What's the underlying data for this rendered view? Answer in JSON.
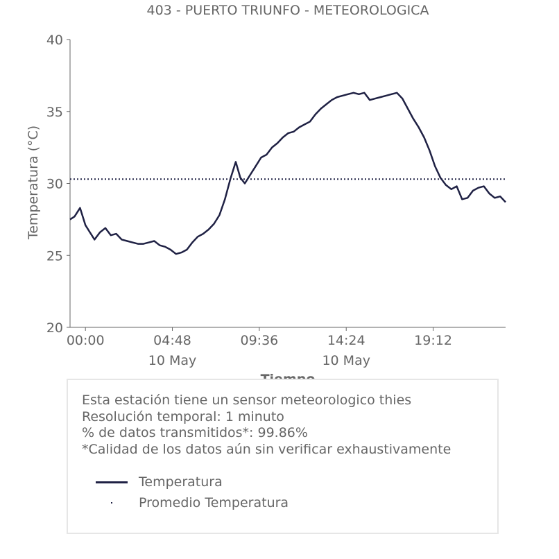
{
  "chart_data": {
    "type": "line",
    "title": "403 - PUERTO TRIUNFO - METEOROLOGICA",
    "xlabel": "Tiempo",
    "ylabel": "Temperatura (°C)",
    "ylim": [
      20,
      40
    ],
    "yticks": [
      20,
      25,
      30,
      35,
      40
    ],
    "xlim_hours": [
      -0.85,
      23.2
    ],
    "xticks": [
      {
        "hour": 0.0,
        "label": "00:00",
        "sublabel": ""
      },
      {
        "hour": 4.8,
        "label": "04:48",
        "sublabel": "10 May"
      },
      {
        "hour": 9.6,
        "label": "09:36",
        "sublabel": ""
      },
      {
        "hour": 14.4,
        "label": "14:24",
        "sublabel": "10 May"
      },
      {
        "hour": 19.2,
        "label": "19:12",
        "sublabel": ""
      }
    ],
    "grid": false,
    "series": [
      {
        "name": "Temperatura",
        "color": "#1f2144",
        "style": "solid",
        "x": [
          -0.85,
          -0.6,
          -0.3,
          0.0,
          0.2,
          0.5,
          0.8,
          1.1,
          1.4,
          1.7,
          2.0,
          2.3,
          2.6,
          2.9,
          3.2,
          3.5,
          3.8,
          4.1,
          4.4,
          4.7,
          5.0,
          5.3,
          5.6,
          5.9,
          6.2,
          6.5,
          6.8,
          7.1,
          7.4,
          7.7,
          8.0,
          8.3,
          8.55,
          8.8,
          9.1,
          9.4,
          9.7,
          10.0,
          10.3,
          10.6,
          10.9,
          11.2,
          11.5,
          11.8,
          12.1,
          12.4,
          12.7,
          13.0,
          13.3,
          13.6,
          13.9,
          14.2,
          14.5,
          14.8,
          15.1,
          15.4,
          15.7,
          16.0,
          16.3,
          16.6,
          16.9,
          17.2,
          17.5,
          17.8,
          18.1,
          18.4,
          18.7,
          19.0,
          19.3,
          19.6,
          19.9,
          20.2,
          20.5,
          20.8,
          21.1,
          21.4,
          21.7,
          22.0,
          22.3,
          22.6,
          22.9,
          23.2
        ],
        "y": [
          27.5,
          27.7,
          28.3,
          27.1,
          26.7,
          26.1,
          26.6,
          26.9,
          26.4,
          26.5,
          26.1,
          26.0,
          25.9,
          25.8,
          25.8,
          25.9,
          26.0,
          25.7,
          25.6,
          25.4,
          25.1,
          25.2,
          25.4,
          25.9,
          26.3,
          26.5,
          26.8,
          27.2,
          27.8,
          28.9,
          30.3,
          31.5,
          30.4,
          30.0,
          30.6,
          31.2,
          31.8,
          32.0,
          32.5,
          32.8,
          33.2,
          33.5,
          33.6,
          33.9,
          34.1,
          34.3,
          34.8,
          35.2,
          35.5,
          35.8,
          36.0,
          36.1,
          36.2,
          36.3,
          36.2,
          36.3,
          35.8,
          35.9,
          36.0,
          36.1,
          36.2,
          36.3,
          35.9,
          35.2,
          34.5,
          33.9,
          33.2,
          32.3,
          31.2,
          30.4,
          29.9,
          29.6,
          29.8,
          28.9,
          29.0,
          29.5,
          29.7,
          29.8,
          29.3,
          29.0,
          29.1,
          28.7
        ]
      },
      {
        "name": "Promedio Temperatura",
        "color": "#1f2144",
        "style": "dotted",
        "x": [
          -0.85,
          23.2
        ],
        "y": [
          30.3,
          30.3
        ]
      }
    ]
  },
  "info": {
    "line1": "Esta estación tiene un sensor meteorologico thies",
    "line2": "Resolución temporal: 1 minuto",
    "line3": "% de datos transmitidos*: 99.86%",
    "line4": "*Calidad de los datos aún sin verificar exhaustivamente"
  },
  "legend": {
    "items": [
      {
        "label": "Temperatura",
        "kind": "line"
      },
      {
        "label": "Promedio Temperatura",
        "kind": "dot"
      }
    ]
  }
}
